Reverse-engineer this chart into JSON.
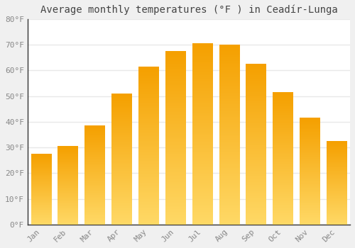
{
  "title": "Average monthly temperatures (°F ) in Ceadír-Lunga",
  "months": [
    "Jan",
    "Feb",
    "Mar",
    "Apr",
    "May",
    "Jun",
    "Jul",
    "Aug",
    "Sep",
    "Oct",
    "Nov",
    "Dec"
  ],
  "values": [
    27.5,
    30.5,
    38.5,
    51.0,
    61.5,
    67.5,
    70.5,
    70.0,
    62.5,
    51.5,
    41.5,
    32.5
  ],
  "bar_color_top": "#F5A800",
  "bar_color_bottom": "#FFD966",
  "ylim": [
    0,
    80
  ],
  "yticks": [
    0,
    10,
    20,
    30,
    40,
    50,
    60,
    70,
    80
  ],
  "ytick_labels": [
    "0°F",
    "10°F",
    "20°F",
    "30°F",
    "40°F",
    "50°F",
    "60°F",
    "70°F",
    "80°F"
  ],
  "background_color": "#f0f0f0",
  "plot_background": "#ffffff",
  "grid_color": "#e8e8e8",
  "title_fontsize": 10,
  "tick_fontsize": 8,
  "font_family": "monospace",
  "tick_color": "#888888",
  "spine_color": "#333333"
}
